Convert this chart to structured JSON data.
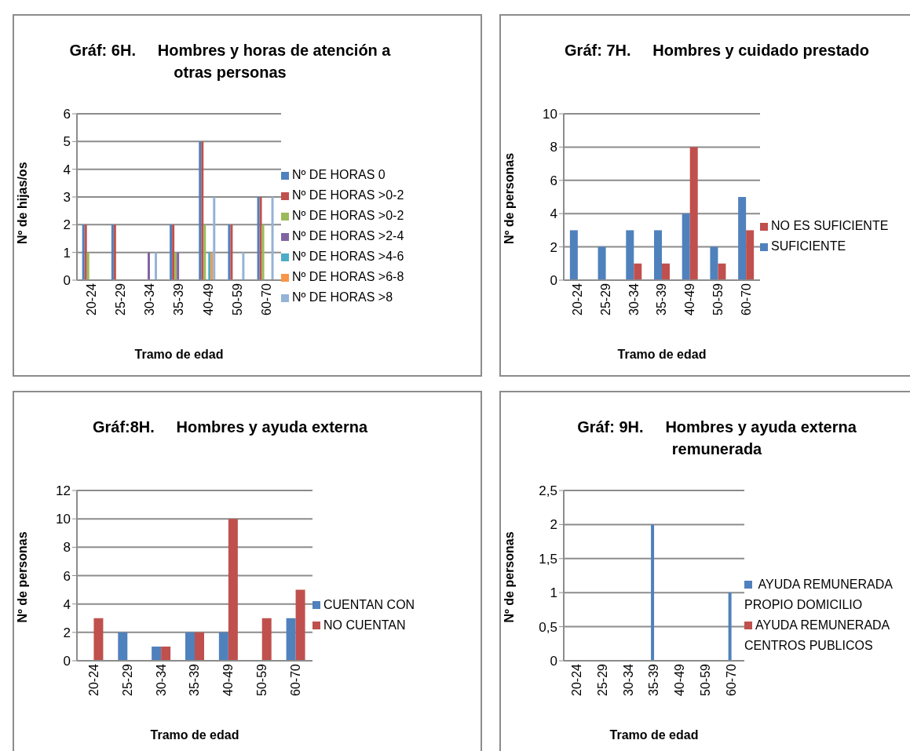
{
  "chart_data": [
    {
      "type": "bar",
      "title": "Gráf: 6H.     Hombres y horas de atención a otras personas",
      "xlabel": "Tramo de edad",
      "ylabel": "Nº de hijas/os",
      "categories": [
        "20-24",
        "25-29",
        "30-34",
        "35-39",
        "40-49",
        "50-59",
        "60-70"
      ],
      "series": [
        {
          "name": "Nº DE HORAS 0",
          "color": "#4f81bd",
          "values": [
            2,
            2,
            0,
            2,
            5,
            2,
            3
          ]
        },
        {
          "name": "Nº DE HORAS >0-2",
          "color": "#c0504d",
          "values": [
            2,
            2,
            0,
            2,
            5,
            2,
            3
          ]
        },
        {
          "name": "Nº DE HORAS >0-2",
          "color": "#9bbb59",
          "values": [
            1,
            0,
            0,
            1,
            2,
            0,
            2
          ]
        },
        {
          "name": "Nº DE HORAS >2-4",
          "color": "#8064a2",
          "values": [
            0,
            0,
            1,
            1,
            0,
            0,
            0
          ]
        },
        {
          "name": "Nº DE HORAS >4-6",
          "color": "#4bacc6",
          "values": [
            0,
            0,
            0,
            0,
            1,
            0,
            0
          ]
        },
        {
          "name": "Nº DE HORAS >6-8",
          "color": "#f79646",
          "values": [
            0,
            0,
            0,
            0,
            1,
            0,
            0
          ]
        },
        {
          "name": "Nº DE HORAS >8",
          "color": "#95b3d7",
          "values": [
            0,
            0,
            1,
            0,
            3,
            1,
            3
          ]
        }
      ],
      "ylim": [
        0,
        6
      ],
      "yticks": [
        0,
        1,
        2,
        3,
        4,
        5,
        6
      ],
      "grid": "y",
      "legend": "right"
    },
    {
      "type": "bar",
      "title": "Gráf: 7H.     Hombres y cuidado prestado",
      "xlabel": "Tramo de edad",
      "ylabel": "Nº de personas",
      "categories": [
        "20-24",
        "25-29",
        "30-34",
        "35-39",
        "40-49",
        "50-59",
        "60-70"
      ],
      "series": [
        {
          "name": "SUFICIENTE",
          "color": "#4f81bd",
          "values": [
            3,
            2,
            3,
            3,
            4,
            2,
            5
          ]
        },
        {
          "name": "NO ES SUFICIENTE",
          "color": "#c0504d",
          "values": [
            0,
            0,
            1,
            1,
            8,
            1,
            3
          ]
        }
      ],
      "ylim": [
        0,
        10
      ],
      "yticks": [
        0,
        2,
        4,
        6,
        8,
        10
      ],
      "grid": "y",
      "legend": "right"
    },
    {
      "type": "bar",
      "title": "Gráf:8H.     Hombres y ayuda externa",
      "xlabel": "Tramo de edad",
      "ylabel": "Nº de personas",
      "categories": [
        "20-24",
        "25-29",
        "30-34",
        "35-39",
        "40-49",
        "50-59",
        "60-70"
      ],
      "series": [
        {
          "name": "CUENTAN CON",
          "color": "#4f81bd",
          "values": [
            0,
            2,
            1,
            2,
            2,
            0,
            3
          ]
        },
        {
          "name": "NO CUENTAN",
          "color": "#c0504d",
          "values": [
            3,
            0,
            1,
            2,
            10,
            3,
            5
          ]
        }
      ],
      "ylim": [
        0,
        12
      ],
      "yticks": [
        0,
        2,
        4,
        6,
        8,
        10,
        12
      ],
      "grid": "y",
      "legend": "right"
    },
    {
      "type": "bar",
      "title": "Gráf: 9H.     Hombres y ayuda externa remunerada",
      "xlabel": "Tramo de edad",
      "ylabel": "Nº de personas",
      "categories": [
        "20-24",
        "25-29",
        "30-34",
        "35-39",
        "40-49",
        "50-59",
        "60-70"
      ],
      "series": [
        {
          "name": " AYUDA REMUNERADA PROPIO DOMICILIO",
          "color": "#4f81bd",
          "values": [
            0,
            0,
            0,
            2,
            0,
            0,
            1
          ]
        },
        {
          "name": "AYUDA REMUNERADA CENTROS PUBLICOS",
          "color": "#c0504d",
          "values": [
            0,
            0,
            0,
            0,
            0,
            0,
            0
          ]
        }
      ],
      "ylim": [
        0,
        2.5
      ],
      "yticks": [
        0,
        {
          "value": 0.5,
          "label": "0,5"
        },
        1,
        {
          "value": 1.5,
          "label": "1,5"
        },
        2,
        {
          "value": 2.5,
          "label": "2,5"
        }
      ],
      "grid": "y",
      "legend": "right"
    }
  ]
}
